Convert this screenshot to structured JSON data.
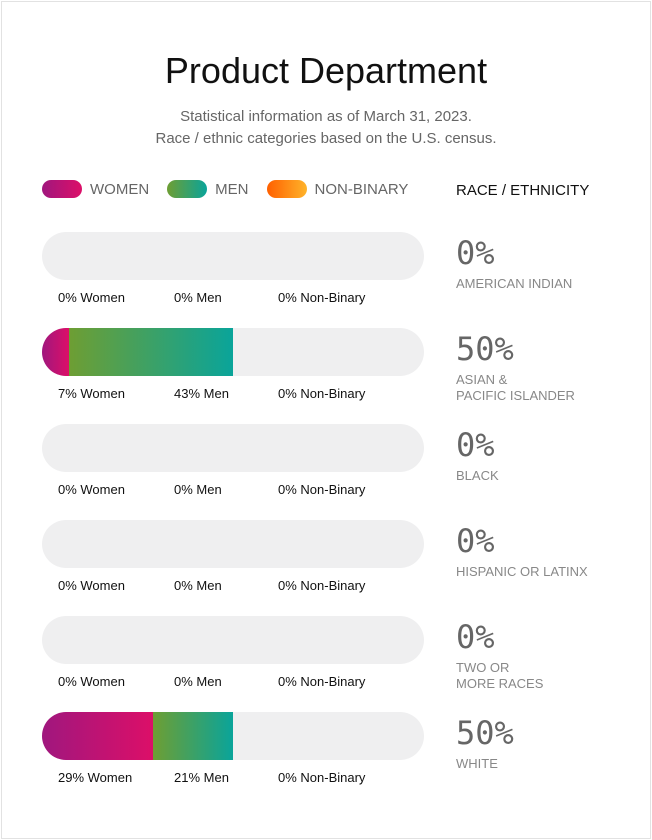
{
  "title": "Product Department",
  "subtitle_lines": [
    "Statistical information as of March 31, 2023.",
    "Race / ethnic categories based on the U.S. census."
  ],
  "legend": [
    {
      "label": "WOMEN",
      "colors": [
        "#a0177e",
        "#dc0f68"
      ]
    },
    {
      "label": "MEN",
      "colors": [
        "#6e9e33",
        "#0aa49a"
      ]
    },
    {
      "label": "NON-BINARY",
      "colors": [
        "#ff6000",
        "#ffb42a"
      ]
    }
  ],
  "race_heading": "RACE / ETHNICITY",
  "chart_data": {
    "type": "bar",
    "orientation": "horizontal-stacked",
    "unit": "percent of department",
    "xlim": [
      0,
      100
    ],
    "series_names": [
      "Women",
      "Men",
      "Non-Binary"
    ],
    "rows": [
      {
        "category": "AMERICAN INDIAN",
        "total": "0%",
        "values": [
          0,
          0,
          0
        ],
        "labels": [
          "0% Women",
          "0% Men",
          "0% Non-Binary"
        ]
      },
      {
        "category": "ASIAN & PACIFIC ISLANDER",
        "category_lines": [
          "ASIAN &",
          "PACIFIC ISLANDER"
        ],
        "total": "50%",
        "values": [
          7,
          43,
          0
        ],
        "labels": [
          "7% Women",
          "43% Men",
          "0% Non-Binary"
        ]
      },
      {
        "category": "BLACK",
        "total": "0%",
        "values": [
          0,
          0,
          0
        ],
        "labels": [
          "0% Women",
          "0% Men",
          "0% Non-Binary"
        ]
      },
      {
        "category": "HISPANIC OR LATINX",
        "total": "0%",
        "values": [
          0,
          0,
          0
        ],
        "labels": [
          "0% Women",
          "0% Men",
          "0% Non-Binary"
        ]
      },
      {
        "category": "TWO OR MORE RACES",
        "category_lines": [
          "TWO OR",
          "MORE RACES"
        ],
        "total": "0%",
        "values": [
          0,
          0,
          0
        ],
        "labels": [
          "0% Women",
          "0% Men",
          "0% Non-Binary"
        ]
      },
      {
        "category": "WHITE",
        "total": "50%",
        "values": [
          29,
          21,
          0
        ],
        "labels": [
          "29% Women",
          "21% Men",
          "0% Non-Binary"
        ]
      }
    ]
  }
}
